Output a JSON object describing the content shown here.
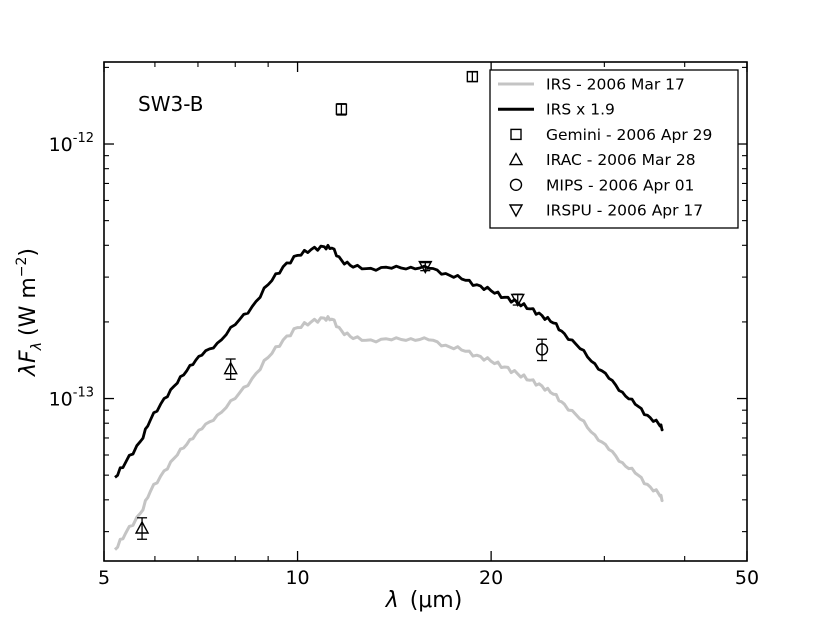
{
  "chart_data": {
    "type": "line",
    "annotation": "SW3-B",
    "xlabel_symbol": "λ",
    "xlabel_unit": "(μm)",
    "ylabel_main": "λF",
    "ylabel_sub": "λ",
    "ylabel_unit": "(W m",
    "ylabel_exp": "−2",
    "ylabel_close": ")",
    "xscale": "log",
    "yscale": "log",
    "xlim": [
      5,
      50
    ],
    "ylim": [
      2.3e-14,
      2.1e-12
    ],
    "x_ticks": [
      {
        "value": 5,
        "label": "5"
      },
      {
        "value": 10,
        "label": "10"
      },
      {
        "value": 20,
        "label": "20"
      },
      {
        "value": 50,
        "label": "50"
      }
    ],
    "y_ticks": [
      {
        "value": 1e-12,
        "base": "10",
        "exp": "-12"
      },
      {
        "value": 1e-13,
        "base": "10",
        "exp": "-13"
      }
    ],
    "legend_position": "top-right",
    "series": [
      {
        "name": "IRS - 2006 Mar 17",
        "kind": "line",
        "color": "#c4c4c4",
        "x": [
          5.2,
          5.4,
          5.7,
          5.9,
          6.2,
          6.5,
          6.8,
          7.1,
          7.5,
          8.0,
          8.5,
          9.0,
          9.5,
          10.0,
          10.5,
          11.0,
          11.3,
          11.7,
          12.2,
          13.0,
          14.0,
          15.0,
          16.0,
          17.0,
          18.0,
          19.0,
          20.0,
          21.0,
          22.0,
          23.0,
          24.0,
          25.0,
          26.0,
          27.5,
          29.0,
          30.5,
          32.0,
          33.5,
          35.0,
          36.5,
          37.0
        ],
        "y": [
          2.55e-14,
          2.95e-14,
          3.55e-14,
          4.3e-14,
          5.2e-14,
          6e-14,
          6.9e-14,
          7.6e-14,
          8.6e-14,
          1e-13,
          1.2e-13,
          1.45e-13,
          1.7e-13,
          1.9e-13,
          2e-13,
          2.07e-13,
          2.05e-13,
          1.85e-13,
          1.72e-13,
          1.7e-13,
          1.7e-13,
          1.72e-13,
          1.7e-13,
          1.62e-13,
          1.55e-13,
          1.48e-13,
          1.4e-13,
          1.33e-13,
          1.25e-13,
          1.18e-13,
          1.12e-13,
          1.04e-13,
          9.5e-14,
          8.3e-14,
          7.2e-14,
          6.3e-14,
          5.6e-14,
          5.1e-14,
          4.6e-14,
          4.2e-14,
          4e-14
        ]
      },
      {
        "name": "IRS x 1.9",
        "kind": "line",
        "color": "#000000",
        "x": [
          5.2,
          5.4,
          5.7,
          5.9,
          6.2,
          6.5,
          6.8,
          7.1,
          7.5,
          8.0,
          8.5,
          9.0,
          9.5,
          10.0,
          10.5,
          11.0,
          11.3,
          11.7,
          12.2,
          13.0,
          14.0,
          15.0,
          16.0,
          17.0,
          18.0,
          19.0,
          20.0,
          21.0,
          22.0,
          23.0,
          24.0,
          25.0,
          26.0,
          27.5,
          29.0,
          30.5,
          32.0,
          33.5,
          35.0,
          36.5,
          37.0
        ],
        "y": [
          4.9e-14,
          5.6e-14,
          6.8e-14,
          8.2e-14,
          1e-13,
          1.15e-13,
          1.35e-13,
          1.48e-13,
          1.65e-13,
          1.95e-13,
          2.3e-13,
          2.8e-13,
          3.3e-13,
          3.65e-13,
          3.85e-13,
          3.95e-13,
          3.9e-13,
          3.5e-13,
          3.28e-13,
          3.25e-13,
          3.25e-13,
          3.28e-13,
          3.25e-13,
          3.1e-13,
          2.95e-13,
          2.8e-13,
          2.65e-13,
          2.5e-13,
          2.38e-13,
          2.25e-13,
          2.12e-13,
          1.98e-13,
          1.8e-13,
          1.57e-13,
          1.37e-13,
          1.2e-13,
          1.06e-13,
          9.5e-14,
          8.6e-14,
          7.9e-14,
          7.6e-14
        ]
      },
      {
        "name": "Gemini - 2006 Apr 29",
        "kind": "marker",
        "marker": "square",
        "color": "#000000",
        "points": [
          {
            "x": 11.7,
            "y": 1.37e-12,
            "yerr": 7e-14
          },
          {
            "x": 18.7,
            "y": 1.84e-12,
            "yerr": 8e-14
          }
        ]
      },
      {
        "name": "IRAC - 2006 Mar 28",
        "kind": "marker",
        "marker": "triangle-up",
        "color": "#000000",
        "points": [
          {
            "x": 5.73,
            "y": 3.1e-14,
            "yerr": 3e-15
          },
          {
            "x": 7.87,
            "y": 1.31e-13,
            "yerr": 1.2e-14
          }
        ]
      },
      {
        "name": "MIPS - 2006 Apr 01",
        "kind": "marker",
        "marker": "circle",
        "color": "#000000",
        "points": [
          {
            "x": 24.0,
            "y": 1.56e-13,
            "yerr": 1.5e-14
          }
        ]
      },
      {
        "name": "IRSPU - 2006 Apr 17",
        "kind": "marker",
        "marker": "triangle-down",
        "color": "#000000",
        "points": [
          {
            "x": 15.8,
            "y": 3.3e-13,
            "yerr": 1.2e-14
          },
          {
            "x": 22.0,
            "y": 2.45e-13,
            "yerr": 1.2e-14
          }
        ]
      }
    ]
  }
}
